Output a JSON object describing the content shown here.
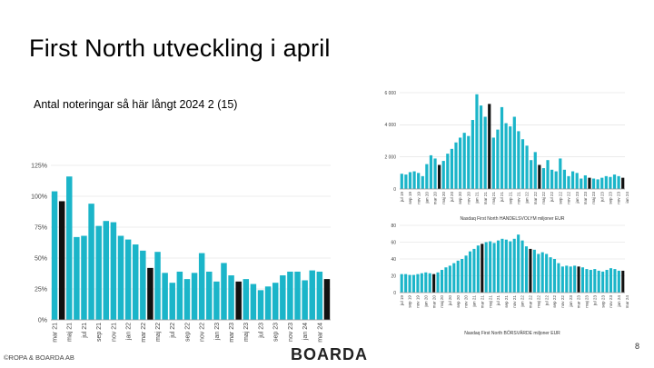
{
  "slide": {
    "title": "First North utveckling i april",
    "subtitle": "Antal noteringar så här långt 2024 2 (15)",
    "footer": "©ROPA & BOARDA AB",
    "logo": "BOARDA",
    "page_number": "8"
  },
  "colors": {
    "bar": "#1BB5C9",
    "highlight": "#111111",
    "grid": "#dddddd",
    "axis": "#999999"
  },
  "chart_data": [
    {
      "type": "bar",
      "title": "",
      "xlabel": "",
      "ylabel": "",
      "ylim": [
        0,
        125
      ],
      "yticks": [
        "0%",
        "25%",
        "50%",
        "75%",
        "100%",
        "125%"
      ],
      "ytick_values": [
        0,
        25,
        50,
        75,
        100,
        125
      ],
      "categories": [
        "mar 21",
        "apr 21",
        "maj 21",
        "jun 21",
        "jul 21",
        "aug 21",
        "sep 21",
        "okt 21",
        "nov 21",
        "dec 21",
        "jan 22",
        "feb 22",
        "mar 22",
        "apr 22",
        "maj 22",
        "jun 22",
        "jul 22",
        "aug 22",
        "sep 22",
        "okt 22",
        "nov 22",
        "dec 22",
        "jan 23",
        "feb 23",
        "mar 23",
        "apr 23",
        "maj 23",
        "jun 23",
        "jul 23",
        "aug 23",
        "sep 23",
        "okt 23",
        "nov 23",
        "dec 23",
        "jan 24",
        "feb 24",
        "mar 24",
        "apr 24"
      ],
      "values": [
        104,
        96,
        116,
        67,
        68,
        94,
        76,
        80,
        79,
        68,
        65,
        61,
        56,
        42,
        55,
        38,
        30,
        39,
        33,
        38,
        54,
        39,
        31,
        46,
        36,
        31,
        33,
        29,
        24,
        27,
        30,
        36,
        39,
        39,
        32,
        40,
        39,
        33
      ],
      "highlight_indices": [
        1,
        13,
        25,
        37
      ],
      "tick_labels": [
        "mar 21",
        "maj 21",
        "jul 21",
        "sep 21",
        "nov 21",
        "jan 22",
        "mar 22",
        "maj 22",
        "jul 22",
        "sep 22",
        "nov 22",
        "jan 23",
        "mar 23",
        "maj 23",
        "jul 23",
        "sep 23",
        "nov 23",
        "jan 24",
        "mar 24"
      ]
    },
    {
      "type": "bar",
      "title": "Nasdaq First North HANDELSVOLYM miljoner EUR",
      "ylim": [
        0,
        6000
      ],
      "yticks": [
        "0",
        "2 000",
        "4 000",
        "6 000"
      ],
      "ytick_values": [
        0,
        2000,
        4000,
        6000
      ],
      "values": [
        950,
        900,
        1050,
        1100,
        1000,
        800,
        1550,
        2100,
        1900,
        1500,
        1750,
        2200,
        2500,
        2900,
        3200,
        3500,
        3300,
        4300,
        5900,
        5200,
        4500,
        5300,
        3200,
        3700,
        5100,
        4100,
        3900,
        4500,
        3600,
        3100,
        2700,
        1800,
        2300,
        1500,
        1300,
        1800,
        1200,
        1100,
        1900,
        1200,
        800,
        1100,
        1000,
        650,
        850,
        700,
        650,
        600,
        700,
        800,
        750,
        900,
        800,
        700
      ],
      "highlight_indices": [
        9,
        21,
        33,
        45,
        53
      ],
      "tick_labels": [
        "jul 19",
        "sep 19",
        "nov 19",
        "jan 20",
        "mar 20",
        "maj 20",
        "jul 20",
        "sep 20",
        "nov 20",
        "jan 21",
        "mar 21",
        "maj 21",
        "jul 21",
        "sep 21",
        "nov 21",
        "jan 22",
        "mar 22",
        "maj 22",
        "jul 22",
        "sep 22",
        "nov 22",
        "jan 23",
        "mar 23",
        "maj 23",
        "jul 23",
        "sep 23",
        "nov 23",
        "jan 24",
        "mar 24"
      ]
    },
    {
      "type": "bar",
      "title": "Nasdaq First North BÖRSVÄRDE miljoner EUR",
      "ylim": [
        0,
        80
      ],
      "yticks": [
        "0",
        "20",
        "40",
        "60",
        "80"
      ],
      "ytick_values": [
        0,
        20,
        40,
        60,
        80
      ],
      "values": [
        22,
        22,
        21,
        21,
        22,
        23,
        24,
        23,
        22,
        24,
        27,
        30,
        32,
        35,
        38,
        40,
        44,
        49,
        52,
        56,
        58,
        60,
        61,
        59,
        62,
        64,
        63,
        61,
        64,
        69,
        62,
        55,
        52,
        51,
        46,
        48,
        46,
        42,
        40,
        35,
        31,
        32,
        31,
        32,
        31,
        30,
        28,
        27,
        28,
        26,
        25,
        27,
        29,
        28,
        26,
        26
      ],
      "highlight_indices": [
        8,
        20,
        32,
        44,
        55
      ],
      "tick_labels": [
        "jul 19",
        "sep 19",
        "nov 19",
        "jan 20",
        "mar 20",
        "maj 20",
        "jul 20",
        "sep 20",
        "nov 20",
        "jan 21",
        "mar 21",
        "maj 21",
        "jul 21",
        "sep 21",
        "nov 21",
        "jan 22",
        "mar 22",
        "maj 22",
        "jul 22",
        "sep 22",
        "nov 22",
        "jan 23",
        "mar 23",
        "maj 23",
        "jul 23",
        "sep 23",
        "nov 23",
        "jan 24",
        "mar 24"
      ]
    }
  ]
}
